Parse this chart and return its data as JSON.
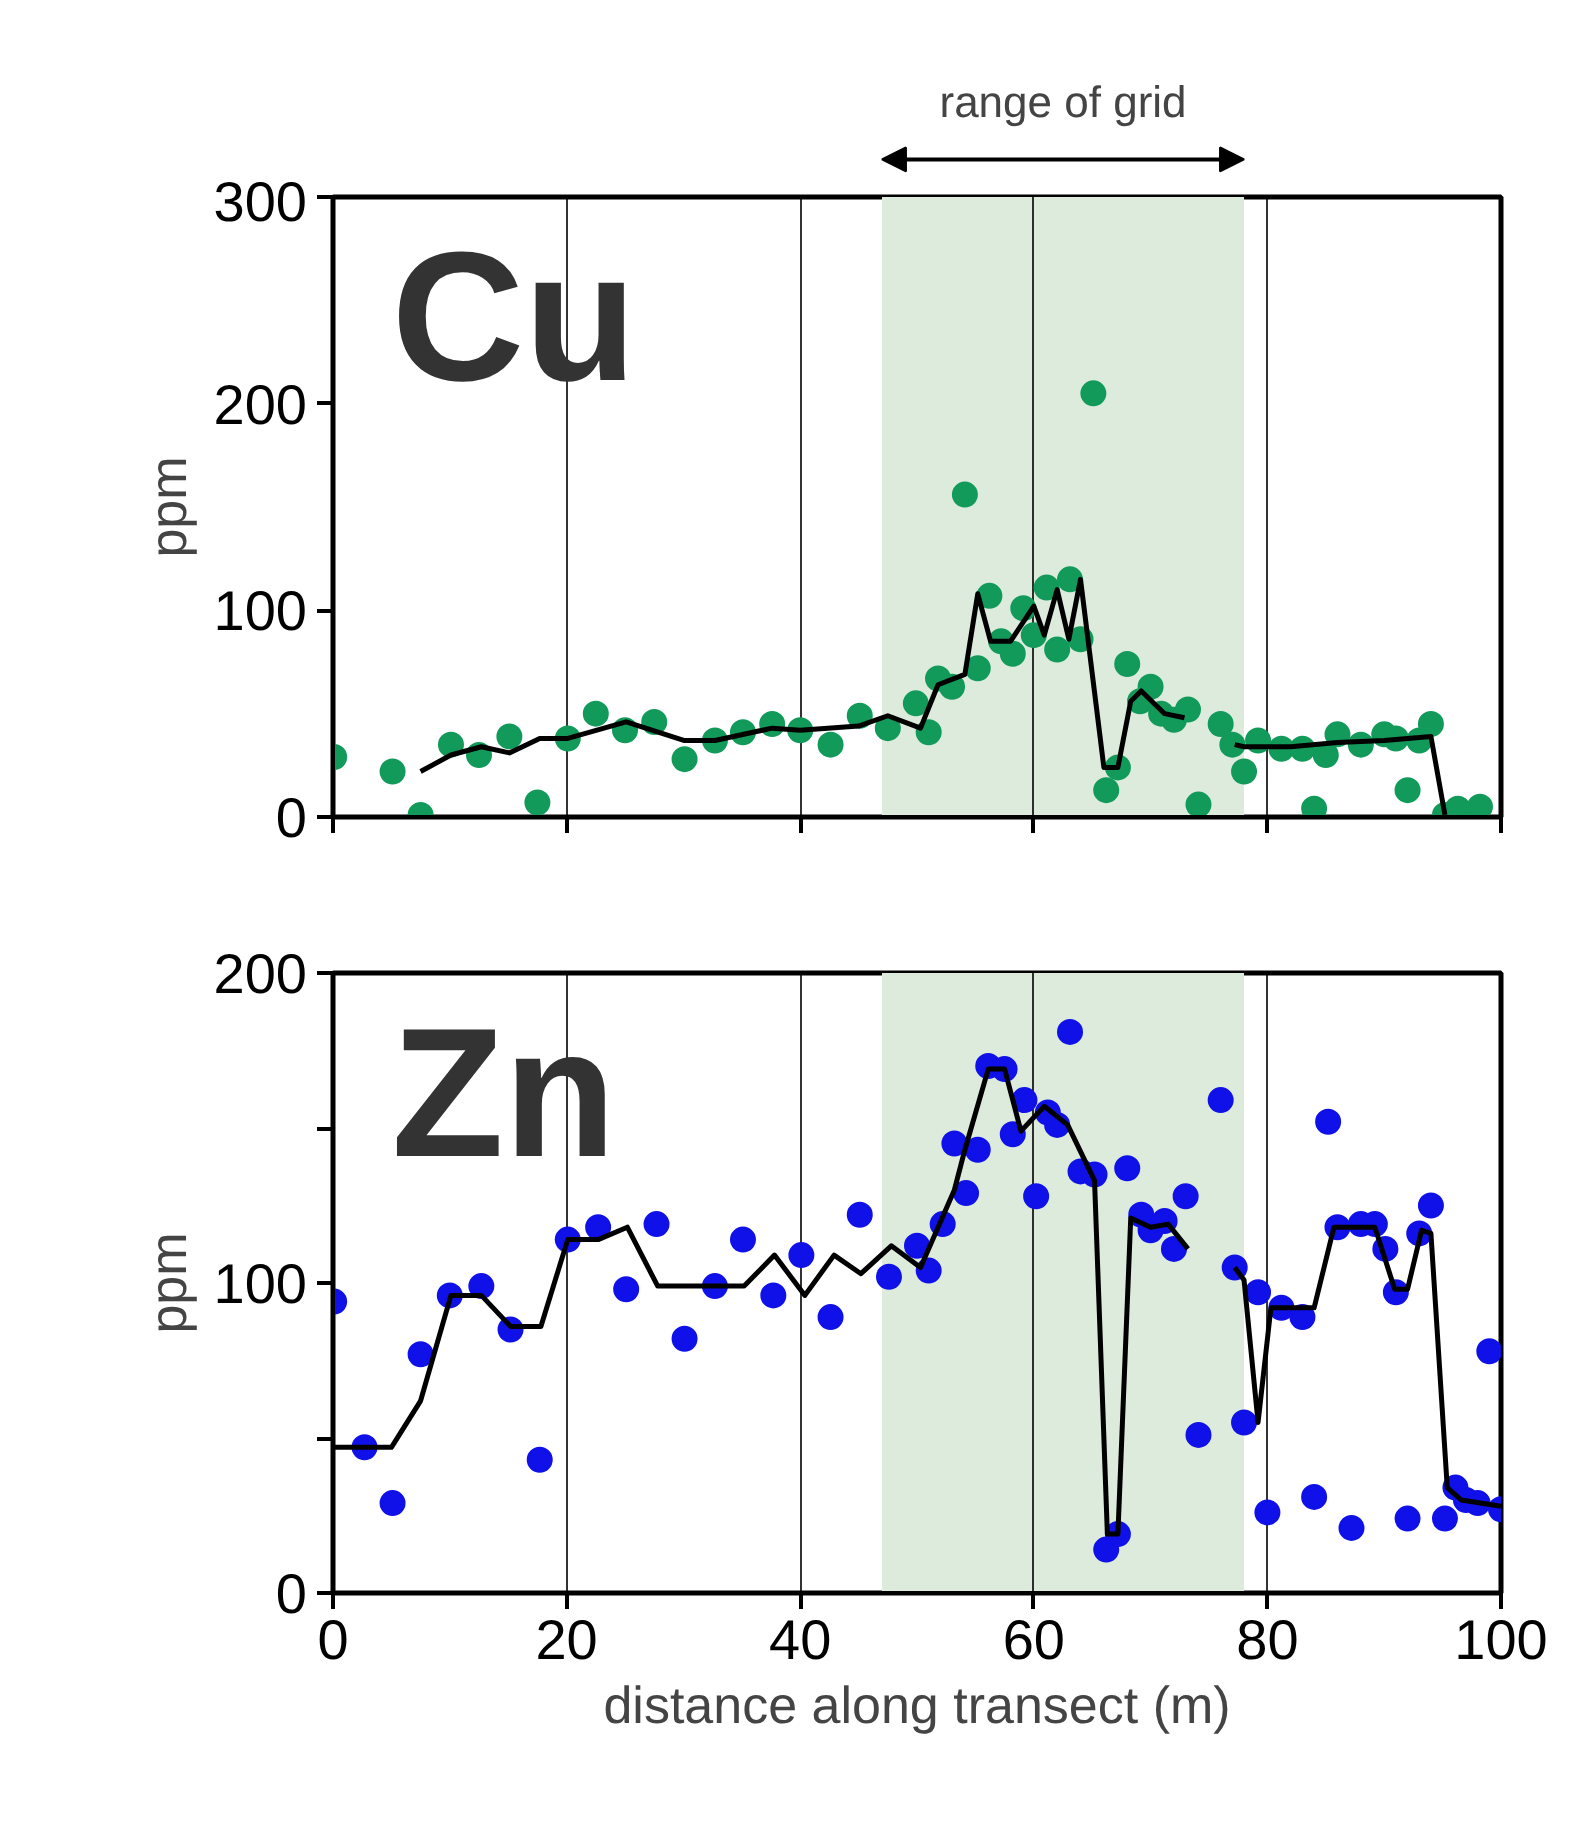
{
  "chart_data": [
    {
      "type": "scatter",
      "title": "Cu",
      "ylabel": "ppm",
      "xlim": [
        0,
        100
      ],
      "xticks": [
        0,
        20,
        40,
        60,
        80,
        100
      ],
      "ylim": [
        0,
        300
      ],
      "yticks": [
        0,
        100,
        200,
        300
      ],
      "grid": "x",
      "tick_labels": "y",
      "line_style": "solid",
      "bands": [
        {
          "axis": "x",
          "from": 47,
          "to": 78,
          "label": "range of grid",
          "color": "#dcebdc"
        }
      ],
      "series": [
        {
          "marker": "circle",
          "color": "#129a5a",
          "x": [
            0.1,
            5.1,
            7.5,
            10.1,
            12.5,
            15.1,
            17.5,
            20.1,
            22.5,
            25,
            27.5,
            30.1,
            32.7,
            35.1,
            37.6,
            40,
            42.6,
            45.1,
            47.5,
            49.9,
            51,
            51.8,
            53,
            54.1,
            55.2,
            56.2,
            57.2,
            58.2,
            59.1,
            60,
            61.1,
            62,
            63.1,
            64,
            65.1,
            66.2,
            67.2,
            68,
            69.1,
            70,
            70.9,
            72,
            73.2,
            74.1,
            76,
            77,
            78,
            79.2,
            81.2,
            83,
            84,
            85,
            86,
            88,
            90,
            91,
            92,
            93,
            94,
            95.2,
            96.3,
            98.2
          ],
          "values": [
            29,
            22,
            1,
            35,
            30,
            39,
            7,
            38,
            50,
            42,
            46,
            28,
            37,
            41,
            45,
            42,
            35,
            49,
            43,
            55,
            41,
            67,
            63,
            156,
            72,
            107,
            85,
            79,
            101,
            88,
            111,
            81,
            115,
            86,
            205,
            13,
            24,
            74,
            56,
            63,
            50,
            47,
            52,
            6,
            45,
            35,
            22,
            37,
            33,
            33,
            4,
            30,
            40,
            35,
            40,
            38,
            13,
            37,
            45,
            1,
            4,
            5
          ]
        },
        {
          "type": "line",
          "color": "#000000",
          "x": [
            7.5,
            10.1,
            12.7,
            15.1,
            17.7,
            20.1,
            25.1,
            30.1,
            32.7,
            37.6,
            40,
            45,
            47.5,
            50.3,
            51.8,
            54.1,
            55.2,
            56.3,
            58,
            60,
            60.9,
            62,
            63,
            64,
            66,
            67.2,
            68.3,
            69.2,
            71.2,
            72.9,
            75,
            77.2,
            78,
            82,
            86,
            90,
            94,
            95.2
          ],
          "values": [
            22,
            30,
            34,
            31,
            38,
            38,
            46,
            37,
            37,
            43,
            42,
            44,
            49,
            43,
            64,
            69,
            108,
            85,
            85,
            102,
            88,
            110,
            86,
            115,
            24,
            24,
            56,
            61,
            50,
            48,
            null,
            35,
            34,
            34,
            36,
            37,
            39,
            1
          ]
        }
      ]
    },
    {
      "type": "scatter",
      "title": "Zn",
      "xlabel": "distance along transect (m)",
      "ylabel": "ppm",
      "xlim": [
        0,
        100
      ],
      "xticks": [
        0,
        20,
        40,
        60,
        80,
        100
      ],
      "ylim": [
        0,
        200
      ],
      "yticks": [
        0,
        {
          "value": 50,
          "label": null
        },
        100,
        {
          "value": 150,
          "label": null
        },
        200
      ],
      "grid": "x",
      "line_style": "solid",
      "bands": [
        {
          "axis": "x",
          "from": 47,
          "to": 78,
          "color": "#dcebdc"
        }
      ],
      "series": [
        {
          "marker": "circle",
          "color": "#1010e8",
          "x": [
            0.1,
            2.7,
            5.1,
            7.5,
            10,
            12.7,
            15.2,
            17.7,
            20.1,
            22.7,
            25.1,
            27.7,
            30.1,
            32.7,
            35.1,
            37.7,
            40.1,
            42.6,
            45.1,
            47.6,
            50,
            51,
            52.2,
            53.2,
            54.2,
            55.2,
            56.1,
            57.5,
            58.2,
            59.2,
            60.2,
            61.2,
            62,
            63.1,
            64,
            65.2,
            66.2,
            67.2,
            68,
            69.2,
            70,
            71.2,
            72,
            73,
            74.1,
            76,
            77.2,
            78,
            79.2,
            80,
            81.2,
            83,
            84,
            85.2,
            86,
            87.2,
            88,
            89.2,
            90.1,
            91,
            92,
            93,
            94,
            95.2,
            96.1,
            97,
            98,
            99,
            100
          ],
          "values": [
            94,
            47,
            29,
            77,
            96,
            99,
            85,
            43,
            114,
            118,
            98,
            119,
            82,
            99,
            114,
            96,
            109,
            89,
            122,
            102,
            112,
            104,
            119,
            145,
            129,
            143,
            170,
            169,
            148,
            159,
            128,
            155,
            151,
            181,
            136,
            135,
            14,
            19,
            137,
            122,
            117,
            120,
            111,
            128,
            51,
            159,
            105,
            55,
            97,
            26,
            92,
            89,
            31,
            152,
            118,
            21,
            119,
            119,
            111,
            97,
            24,
            116,
            125,
            24,
            34,
            30,
            29,
            78,
            27
          ]
        },
        {
          "type": "line",
          "color": "#000000",
          "x": [
            0.1,
            5,
            7.5,
            10.1,
            12.7,
            15.2,
            17.8,
            20.1,
            22.7,
            25.2,
            27.8,
            35.2,
            37.8,
            40.4,
            42.9,
            45.2,
            47.8,
            50.3,
            53.2,
            54.1,
            56.1,
            57.5,
            58.9,
            60.9,
            62.9,
            65.2,
            66.3,
            67.2,
            68.3,
            70,
            71.5,
            73.2,
            75,
            77.2,
            78,
            79.2,
            80.3,
            84,
            85.7,
            89.2,
            90.9,
            92,
            93.2,
            94,
            95.4,
            96.6,
            100
          ],
          "values": [
            47,
            47,
            62,
            96,
            96,
            86,
            86,
            114,
            114,
            118,
            99,
            99,
            109,
            96,
            109,
            103,
            112,
            105,
            130,
            143,
            169,
            169,
            149,
            157,
            151,
            133,
            19,
            19,
            121,
            118,
            119,
            111,
            null,
            105,
            101,
            55,
            92,
            92,
            118,
            118,
            98,
            98,
            117,
            116,
            34,
            30,
            28
          ]
        }
      ]
    }
  ]
}
